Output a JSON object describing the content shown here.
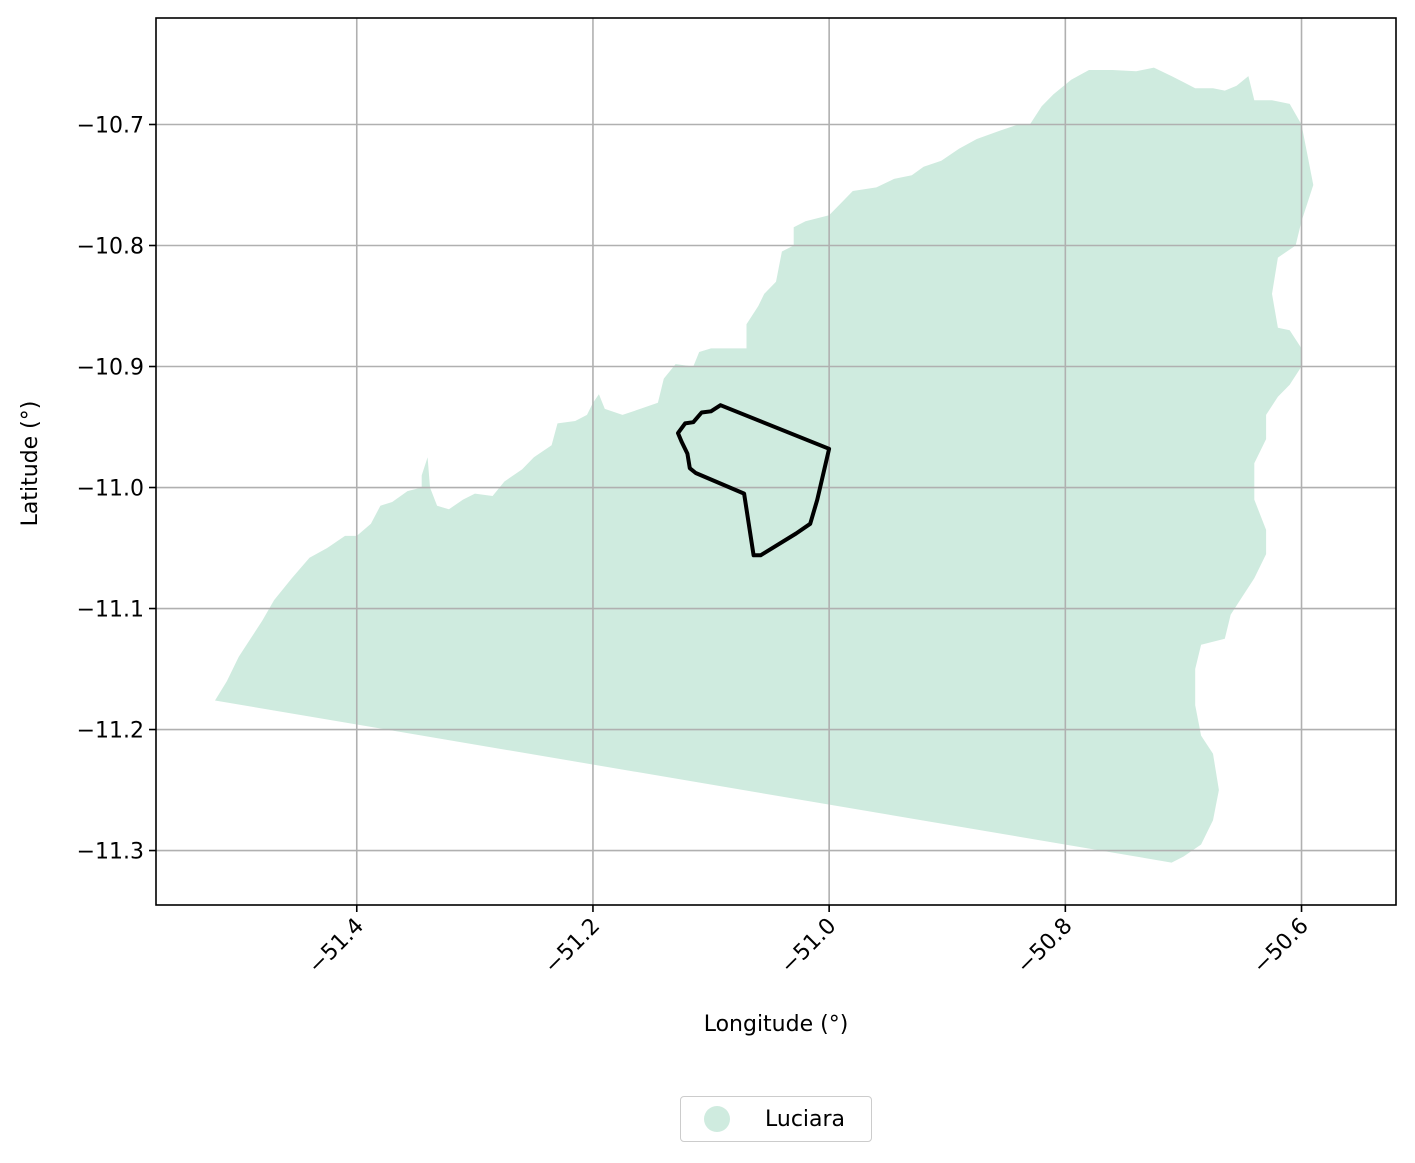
{
  "chart_data": {
    "type": "map",
    "xlabel": "Longitude (°)",
    "ylabel": "Latitude (°)",
    "xlim": [
      -51.57,
      -50.52
    ],
    "ylim": [
      -11.345,
      -10.612
    ],
    "xticks": [
      -51.4,
      -51.2,
      -51.0,
      -50.8,
      -50.6
    ],
    "xtick_labels": [
      "−51.4",
      "−51.2",
      "−51.0",
      "−50.8",
      "−50.6"
    ],
    "yticks": [
      -10.7,
      -10.8,
      -10.9,
      -11.0,
      -11.1,
      -11.2,
      -11.3
    ],
    "ytick_labels": [
      "−10.7",
      "−10.8",
      "−10.9",
      "−11.0",
      "−11.1",
      "−11.2",
      "−11.3"
    ],
    "grid": true,
    "legend_position": "bottom-center",
    "regions": [
      {
        "name": "Luciara",
        "color": "#cfebdf",
        "outline": [
          [
            -51.52,
            -11.176
          ],
          [
            -51.51,
            -11.16
          ],
          [
            -51.5,
            -11.14
          ],
          [
            -51.49,
            -11.125
          ],
          [
            -51.48,
            -11.11
          ],
          [
            -51.47,
            -11.093
          ],
          [
            -51.455,
            -11.075
          ],
          [
            -51.44,
            -11.058
          ],
          [
            -51.425,
            -11.05
          ],
          [
            -51.41,
            -11.04
          ],
          [
            -51.4,
            -11.04
          ],
          [
            -51.388,
            -11.03
          ],
          [
            -51.38,
            -11.015
          ],
          [
            -51.37,
            -11.012
          ],
          [
            -51.357,
            -11.003
          ],
          [
            -51.345,
            -11.0
          ],
          [
            -51.345,
            -10.99
          ],
          [
            -51.34,
            -10.975
          ],
          [
            -51.35,
            -10.97
          ],
          [
            -51.34,
            -10.975
          ],
          [
            -51.338,
            -11.0
          ],
          [
            -51.332,
            -11.015
          ],
          [
            -51.322,
            -11.018
          ],
          [
            -51.31,
            -11.01
          ],
          [
            -51.3,
            -11.005
          ],
          [
            -51.285,
            -11.007
          ],
          [
            -51.275,
            -10.995
          ],
          [
            -51.26,
            -10.985
          ],
          [
            -51.25,
            -10.975
          ],
          [
            -51.235,
            -10.965
          ],
          [
            -51.23,
            -10.947
          ],
          [
            -51.215,
            -10.945
          ],
          [
            -51.205,
            -10.94
          ],
          [
            -51.2,
            -10.93
          ],
          [
            -51.195,
            -10.923
          ],
          [
            -51.19,
            -10.935
          ],
          [
            -51.175,
            -10.94
          ],
          [
            -51.16,
            -10.935
          ],
          [
            -51.145,
            -10.93
          ],
          [
            -51.14,
            -10.91
          ],
          [
            -51.13,
            -10.898
          ],
          [
            -51.115,
            -10.9
          ],
          [
            -51.11,
            -10.888
          ],
          [
            -51.1,
            -10.885
          ],
          [
            -51.09,
            -10.885
          ],
          [
            -51.07,
            -10.885
          ],
          [
            -51.07,
            -10.865
          ],
          [
            -51.06,
            -10.85
          ],
          [
            -51.055,
            -10.84
          ],
          [
            -51.045,
            -10.83
          ],
          [
            -51.04,
            -10.805
          ],
          [
            -51.03,
            -10.8
          ],
          [
            -51.03,
            -10.785
          ],
          [
            -51.02,
            -10.78
          ],
          [
            -51.0,
            -10.775
          ],
          [
            -50.99,
            -10.765
          ],
          [
            -50.98,
            -10.755
          ],
          [
            -50.96,
            -10.752
          ],
          [
            -50.945,
            -10.745
          ],
          [
            -50.93,
            -10.742
          ],
          [
            -50.92,
            -10.735
          ],
          [
            -50.905,
            -10.73
          ],
          [
            -50.89,
            -10.72
          ],
          [
            -50.875,
            -10.712
          ],
          [
            -50.855,
            -10.705
          ],
          [
            -50.84,
            -10.7
          ],
          [
            -50.83,
            -10.7
          ],
          [
            -50.82,
            -10.685
          ],
          [
            -50.81,
            -10.675
          ],
          [
            -50.795,
            -10.663
          ],
          [
            -50.78,
            -10.655
          ],
          [
            -50.76,
            -10.655
          ],
          [
            -50.74,
            -10.656
          ],
          [
            -50.725,
            -10.653
          ],
          [
            -50.71,
            -10.66
          ],
          [
            -50.7,
            -10.665
          ],
          [
            -50.69,
            -10.67
          ],
          [
            -50.675,
            -10.67
          ],
          [
            -50.665,
            -10.672
          ],
          [
            -50.655,
            -10.668
          ],
          [
            -50.645,
            -10.66
          ],
          [
            -50.64,
            -10.68
          ],
          [
            -50.625,
            -10.68
          ],
          [
            -50.61,
            -10.683
          ],
          [
            -50.6,
            -10.7
          ],
          [
            -50.595,
            -10.725
          ],
          [
            -50.59,
            -10.75
          ],
          [
            -50.6,
            -10.78
          ],
          [
            -50.605,
            -10.8
          ],
          [
            -50.62,
            -10.81
          ],
          [
            -50.625,
            -10.84
          ],
          [
            -50.62,
            -10.868
          ],
          [
            -50.61,
            -10.87
          ],
          [
            -50.6,
            -10.885
          ],
          [
            -50.6,
            -10.9
          ],
          [
            -50.61,
            -10.915
          ],
          [
            -50.62,
            -10.925
          ],
          [
            -50.63,
            -10.94
          ],
          [
            -50.63,
            -10.96
          ],
          [
            -50.64,
            -10.98
          ],
          [
            -50.64,
            -11.01
          ],
          [
            -50.63,
            -11.035
          ],
          [
            -50.63,
            -11.055
          ],
          [
            -50.64,
            -11.075
          ],
          [
            -50.65,
            -11.09
          ],
          [
            -50.66,
            -11.105
          ],
          [
            -50.665,
            -11.125
          ],
          [
            -50.685,
            -11.13
          ],
          [
            -50.69,
            -11.15
          ],
          [
            -50.69,
            -11.18
          ],
          [
            -50.685,
            -11.205
          ],
          [
            -50.675,
            -11.22
          ],
          [
            -50.67,
            -11.25
          ],
          [
            -50.675,
            -11.275
          ],
          [
            -50.685,
            -11.295
          ],
          [
            -50.7,
            -11.305
          ],
          [
            -50.71,
            -11.31
          ],
          [
            -51.52,
            -11.176
          ]
        ]
      }
    ],
    "overlays": [
      {
        "name": "",
        "color": "#000000",
        "outline": [
          [
            -51.092,
            -10.932
          ],
          [
            -51.0,
            -10.968
          ],
          [
            -51.01,
            -11.01
          ],
          [
            -51.016,
            -11.03
          ],
          [
            -51.028,
            -11.038
          ],
          [
            -51.058,
            -11.056
          ],
          [
            -51.064,
            -11.056
          ],
          [
            -51.072,
            -11.005
          ],
          [
            -51.113,
            -10.988
          ],
          [
            -51.118,
            -10.984
          ],
          [
            -51.12,
            -10.972
          ],
          [
            -51.125,
            -10.962
          ],
          [
            -51.128,
            -10.955
          ],
          [
            -51.122,
            -10.947
          ],
          [
            -51.115,
            -10.946
          ],
          [
            -51.108,
            -10.938
          ],
          [
            -51.1,
            -10.937
          ],
          [
            -51.092,
            -10.932
          ]
        ]
      }
    ],
    "legend": [
      {
        "label": "Luciara",
        "color": "#cfebdf"
      }
    ]
  }
}
